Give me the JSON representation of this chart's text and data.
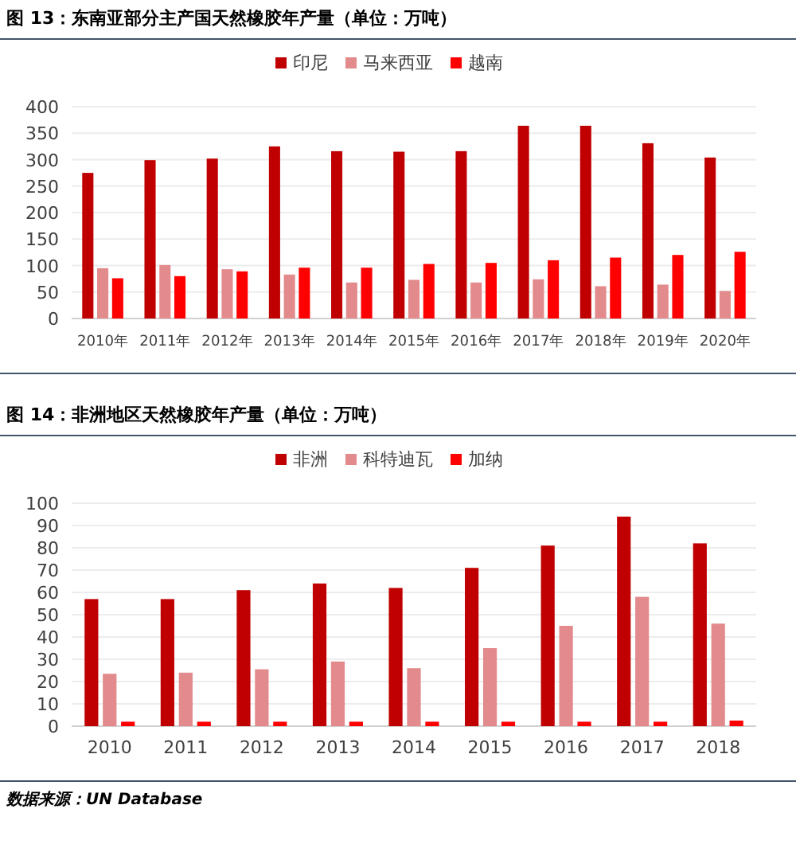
{
  "chart_data": [
    {
      "type": "bar",
      "title": "图 13：东南亚部分主产国天然橡胶年产量（单位：万吨）",
      "categories": [
        "2010年",
        "2011年",
        "2012年",
        "2013年",
        "2014年",
        "2015年",
        "2016年",
        "2017年",
        "2018年",
        "2019年",
        "2020年"
      ],
      "series": [
        {
          "name": "印尼",
          "color": "#c00000",
          "values": [
            275,
            299,
            302,
            325,
            316,
            315,
            316,
            364,
            364,
            331,
            304
          ]
        },
        {
          "name": "马来西亚",
          "color": "#e28a8c",
          "values": [
            95,
            101,
            93,
            83,
            68,
            73,
            68,
            74,
            61,
            64,
            52
          ]
        },
        {
          "name": "越南",
          "color": "#ff0000",
          "values": [
            76,
            80,
            89,
            96,
            96,
            103,
            105,
            110,
            115,
            120,
            126
          ]
        }
      ],
      "ylim": [
        0,
        400
      ],
      "yticks": [
        0,
        50,
        100,
        150,
        200,
        250,
        300,
        350,
        400
      ],
      "grid": "y",
      "legend": "top"
    },
    {
      "type": "bar",
      "title": "图 14：非洲地区天然橡胶年产量（单位：万吨）",
      "categories": [
        "2010",
        "2011",
        "2012",
        "2013",
        "2014",
        "2015",
        "2016",
        "2017",
        "2018"
      ],
      "series": [
        {
          "name": "非洲",
          "color": "#c00000",
          "values": [
            57,
            57,
            61,
            64,
            62,
            71,
            81,
            94,
            82
          ]
        },
        {
          "name": "科特迪瓦",
          "color": "#e28a8c",
          "values": [
            23.5,
            24,
            25.5,
            29,
            26,
            35,
            45,
            58,
            46
          ]
        },
        {
          "name": "加纳",
          "color": "#ff0000",
          "values": [
            2,
            2,
            2,
            2,
            2,
            2,
            2,
            2,
            2.5
          ]
        }
      ],
      "ylim": [
        0,
        100
      ],
      "yticks": [
        0,
        10,
        20,
        30,
        40,
        50,
        60,
        70,
        80,
        90,
        100
      ],
      "grid": "y",
      "legend": "top",
      "annotations": [
        "数据来源：UN Database"
      ]
    }
  ]
}
